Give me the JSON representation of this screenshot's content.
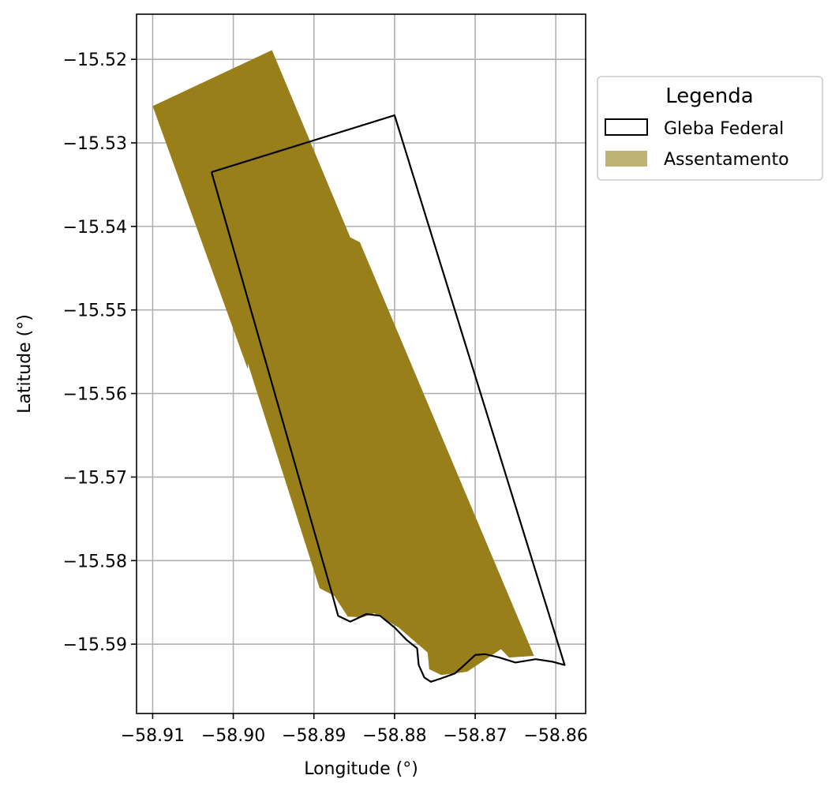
{
  "chart_data": {
    "type": "map",
    "xlabel": "Longitude (°)",
    "ylabel": "Latitude (°)",
    "xlim": [
      -58.912,
      -58.8563
    ],
    "ylim": [
      -15.5983,
      -15.5146
    ],
    "grid": true,
    "x_ticks": [
      -58.91,
      -58.9,
      -58.89,
      -58.88,
      -58.87,
      -58.86
    ],
    "x_tick_labels": [
      "−58.91",
      "−58.90",
      "−58.89",
      "−58.88",
      "−58.87",
      "−58.86"
    ],
    "y_ticks": [
      -15.52,
      -15.53,
      -15.54,
      -15.55,
      -15.56,
      -15.57,
      -15.58,
      -15.59
    ],
    "y_tick_labels": [
      "−15.52",
      "−15.53",
      "−15.54",
      "−15.55",
      "−15.56",
      "−15.57",
      "−15.58",
      "−15.59"
    ],
    "legend": {
      "title": "Legenda",
      "position": "outside-upper-right",
      "entries": [
        {
          "label": "Gleba Federal",
          "style": "outline",
          "color": "#000000"
        },
        {
          "label": "Assentamento",
          "style": "fill",
          "color": "#bfb373"
        }
      ]
    },
    "layers": [
      {
        "name": "Assentamento",
        "fill": "#987f19",
        "coordinates": [
          [
            -58.91,
            -15.5256
          ],
          [
            -58.8952,
            -15.5189
          ],
          [
            -58.8855,
            -15.5413
          ],
          [
            -58.8843,
            -15.5419
          ],
          [
            -58.8627,
            -15.5914
          ],
          [
            -58.8658,
            -15.5916
          ],
          [
            -58.8668,
            -15.5906
          ],
          [
            -58.871,
            -15.5933
          ],
          [
            -58.8742,
            -15.5937
          ],
          [
            -58.8757,
            -15.593
          ],
          [
            -58.8759,
            -15.591
          ],
          [
            -58.8795,
            -15.588
          ],
          [
            -58.8825,
            -15.5863
          ],
          [
            -58.884,
            -15.5868
          ],
          [
            -58.8858,
            -15.5867
          ],
          [
            -58.8875,
            -15.5842
          ],
          [
            -58.8893,
            -15.5833
          ],
          [
            -58.8982,
            -15.5564
          ],
          [
            -58.8982,
            -15.5571
          ]
        ]
      },
      {
        "name": "Gleba Federal",
        "stroke": "#000000",
        "fill": "none",
        "coordinates": [
          [
            -58.9027,
            -15.5335
          ],
          [
            -58.88,
            -15.5267
          ],
          [
            -58.8589,
            -15.5925
          ],
          [
            -58.8604,
            -15.5921
          ],
          [
            -58.8625,
            -15.5918
          ],
          [
            -58.865,
            -15.5922
          ],
          [
            -58.867,
            -15.5916
          ],
          [
            -58.8688,
            -15.5912
          ],
          [
            -58.87,
            -15.5913
          ],
          [
            -58.871,
            -15.5922
          ],
          [
            -58.8725,
            -15.5935
          ],
          [
            -58.8742,
            -15.5941
          ],
          [
            -58.8755,
            -15.5945
          ],
          [
            -58.8763,
            -15.594
          ],
          [
            -58.877,
            -15.5925
          ],
          [
            -58.8772,
            -15.5905
          ],
          [
            -58.8785,
            -15.5895
          ],
          [
            -58.88,
            -15.588
          ],
          [
            -58.8818,
            -15.5866
          ],
          [
            -58.8835,
            -15.5864
          ],
          [
            -58.8848,
            -15.587
          ],
          [
            -58.8855,
            -15.5873
          ],
          [
            -58.887,
            -15.5866
          ],
          [
            -58.8878,
            -15.5838
          ],
          [
            -58.9027,
            -15.5335
          ]
        ]
      }
    ]
  }
}
